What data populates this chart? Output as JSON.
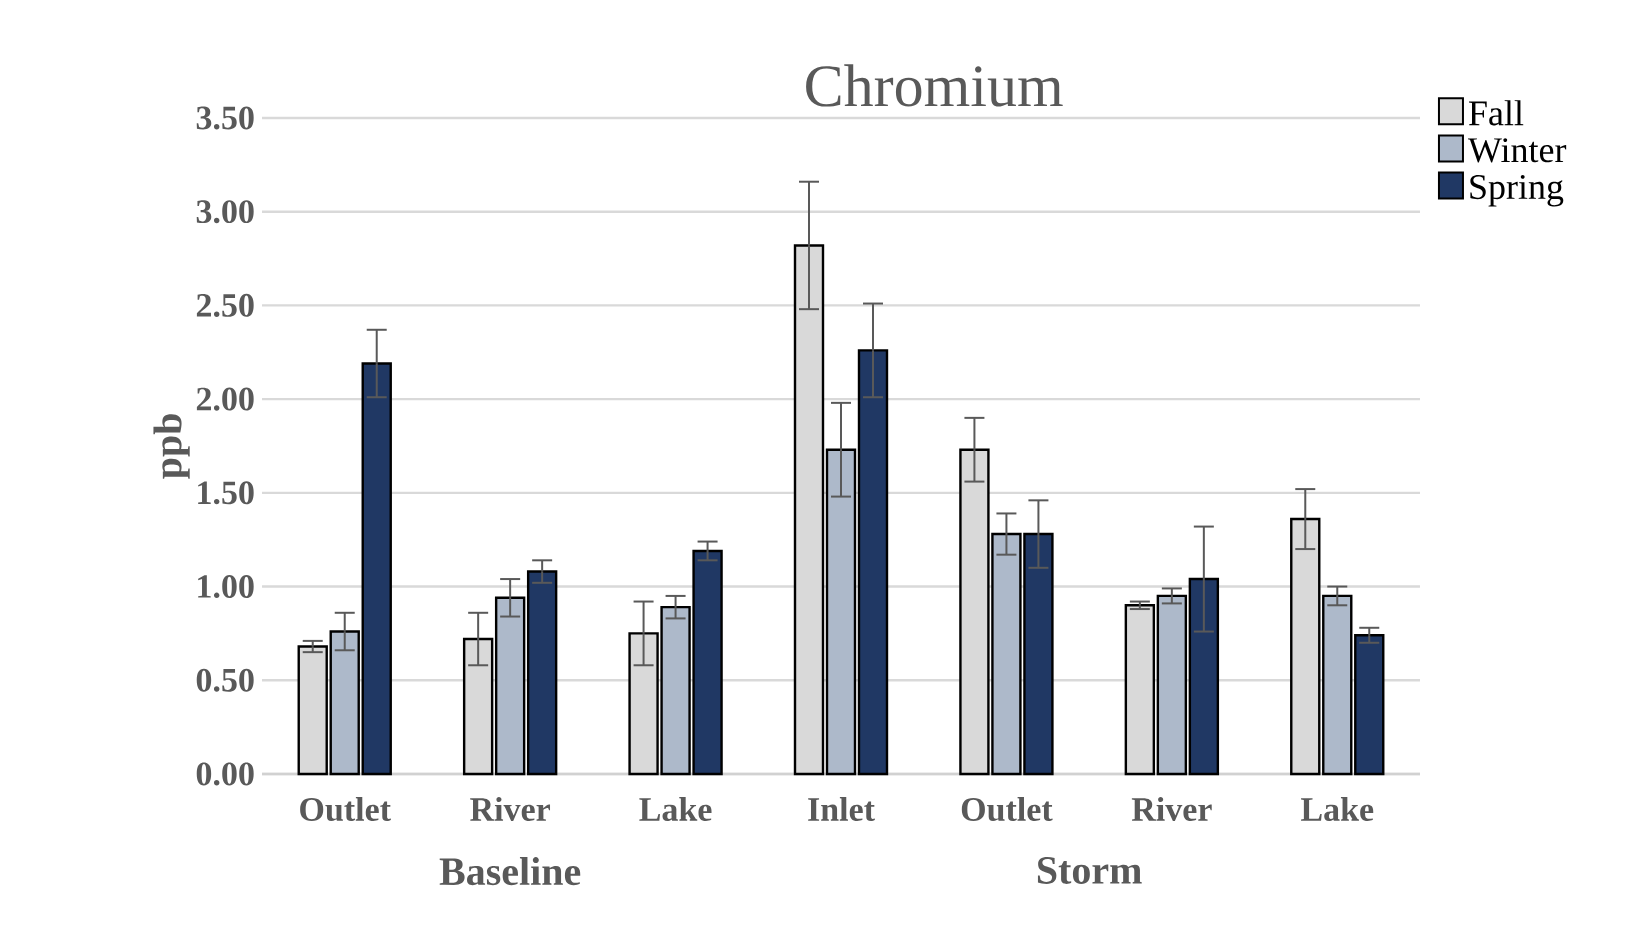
{
  "chart_data": {
    "type": "bar",
    "title": "Chromium",
    "ylabel": "ppb",
    "categories": [
      "Outlet",
      "River",
      "Lake",
      "Inlet",
      "Outlet",
      "River",
      "Lake"
    ],
    "annotations": [
      "Baseline",
      "Storm"
    ],
    "series": [
      {
        "name": "Fall",
        "color": "#d9d9d9",
        "values": [
          0.68,
          0.72,
          0.75,
          2.82,
          1.73,
          0.9,
          1.36
        ],
        "errors": [
          0.03,
          0.14,
          0.17,
          0.34,
          0.17,
          0.02,
          0.16
        ]
      },
      {
        "name": "Winter",
        "color": "#adb9ca",
        "values": [
          0.76,
          0.94,
          0.89,
          1.73,
          1.28,
          0.95,
          0.95
        ],
        "errors": [
          0.1,
          0.1,
          0.06,
          0.25,
          0.11,
          0.04,
          0.05
        ]
      },
      {
        "name": "Spring",
        "color": "#203864",
        "values": [
          2.19,
          1.08,
          1.19,
          2.26,
          1.28,
          1.04,
          0.74
        ],
        "errors": [
          0.18,
          0.06,
          0.05,
          0.25,
          0.18,
          0.28,
          0.04
        ]
      }
    ],
    "ylim": [
      0,
      3.5
    ],
    "yticks": [
      {
        "value": 0,
        "label": "0.00"
      },
      {
        "value": 0.5,
        "label": "0.50"
      },
      {
        "value": 1,
        "label": "1.00"
      },
      {
        "value": 1.5,
        "label": "1.50"
      },
      {
        "value": 2,
        "label": "2.00"
      },
      {
        "value": 2.5,
        "label": "2.50"
      },
      {
        "value": 3,
        "label": "3.00"
      },
      {
        "value": 3.5,
        "label": "3.50"
      }
    ],
    "grid": "y",
    "legend": "top right"
  }
}
